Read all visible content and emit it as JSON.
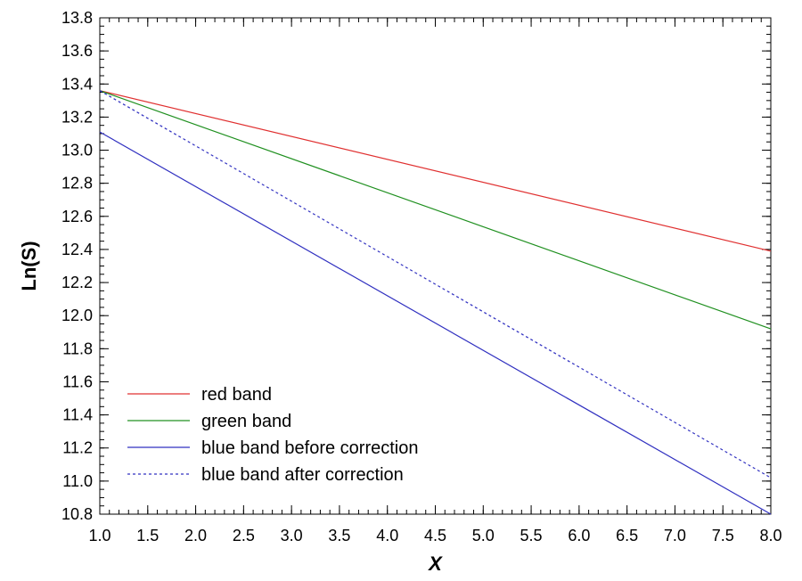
{
  "chart_data": {
    "type": "line",
    "title": "",
    "xlabel": "X",
    "ylabel": "Ln(S)",
    "xlim": [
      1.0,
      8.0
    ],
    "ylim": [
      10.8,
      13.8
    ],
    "x_ticks": [
      "1.0",
      "1.5",
      "2.0",
      "2.5",
      "3.0",
      "3.5",
      "4.0",
      "4.5",
      "5.0",
      "5.5",
      "6.0",
      "6.5",
      "7.0",
      "7.5",
      "8.0"
    ],
    "y_ticks": [
      "10.8",
      "11.0",
      "11.2",
      "11.4",
      "11.6",
      "11.8",
      "12.0",
      "12.2",
      "12.4",
      "12.6",
      "12.8",
      "13.0",
      "13.2",
      "13.4",
      "13.6",
      "13.8"
    ],
    "grid": false,
    "legend_position": "bottom-left",
    "series": [
      {
        "name": "red band",
        "color": "#e03030",
        "dash": "solid",
        "x": [
          1.0,
          8.0
        ],
        "y": [
          13.36,
          12.39
        ]
      },
      {
        "name": "green band",
        "color": "#209020",
        "dash": "solid",
        "x": [
          1.0,
          8.0
        ],
        "y": [
          13.36,
          11.92
        ]
      },
      {
        "name": "blue band before correction",
        "color": "#3030c0",
        "dash": "solid",
        "x": [
          1.0,
          8.0
        ],
        "y": [
          13.11,
          10.8
        ]
      },
      {
        "name": "blue band after correction",
        "color": "#3030c0",
        "dash": "dotted",
        "x": [
          1.0,
          8.0
        ],
        "y": [
          13.36,
          11.02
        ]
      }
    ]
  }
}
